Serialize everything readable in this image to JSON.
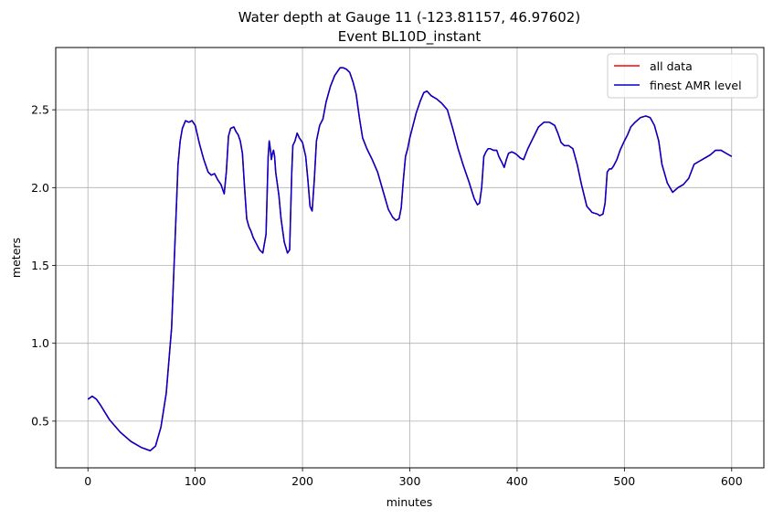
{
  "chart_data": {
    "type": "line",
    "title": "Water depth at Gauge 11 (-123.81157, 46.97602)",
    "subtitle": "Event BL10D_instant",
    "xlabel": "minutes",
    "ylabel": "meters",
    "xlim": [
      -30,
      630
    ],
    "ylim": [
      0.2,
      2.9
    ],
    "xticks": [
      0,
      100,
      200,
      300,
      400,
      500,
      600
    ],
    "yticks": [
      0.5,
      1.0,
      1.5,
      2.0,
      2.5
    ],
    "ytick_labels": [
      "0.5",
      "1.0",
      "1.5",
      "2.0",
      "2.5"
    ],
    "grid": true,
    "legend_position": "top-right",
    "series": [
      {
        "name": "all data",
        "color": "#ff0000",
        "x": [
          0,
          4,
          8,
          12,
          20,
          30,
          40,
          50,
          58,
          63,
          68,
          73,
          78,
          82,
          84,
          86,
          88,
          91,
          94,
          97,
          100,
          104,
          108,
          112,
          115,
          118,
          121,
          124,
          127,
          129,
          131,
          133,
          136,
          138,
          140,
          142,
          144,
          146,
          148,
          150,
          152,
          154,
          157,
          160,
          163,
          166,
          168,
          169,
          170,
          171,
          172,
          173,
          174,
          175,
          176,
          178,
          180,
          183,
          186,
          188,
          190,
          191,
          193,
          195,
          197,
          200,
          203,
          205,
          207,
          209,
          211,
          213,
          216,
          219,
          222,
          226,
          230,
          235,
          238,
          241,
          244,
          247,
          250,
          253,
          256,
          260,
          265,
          270,
          275,
          280,
          284,
          287,
          290,
          292,
          294,
          296,
          298,
          300,
          303,
          306,
          310,
          313,
          316,
          320,
          325,
          330,
          335,
          340,
          345,
          350,
          355,
          360,
          363,
          365,
          367,
          369,
          371,
          373,
          375,
          378,
          381,
          383,
          386,
          388,
          390,
          392,
          395,
          398,
          400,
          403,
          406,
          410,
          415,
          420,
          425,
          430,
          435,
          438,
          441,
          444,
          448,
          452,
          456,
          460,
          465,
          470,
          475,
          477,
          480,
          482,
          484,
          486,
          488,
          490,
          493,
          496,
          500,
          503,
          506,
          510,
          515,
          520,
          524,
          528,
          532,
          535,
          540,
          545,
          550,
          555,
          560,
          565,
          570,
          575,
          580,
          585,
          590,
          595,
          600
        ],
        "y": [
          0.64,
          0.66,
          0.64,
          0.6,
          0.51,
          0.43,
          0.37,
          0.33,
          0.31,
          0.34,
          0.46,
          0.68,
          1.1,
          1.8,
          2.15,
          2.3,
          2.38,
          2.43,
          2.42,
          2.43,
          2.4,
          2.28,
          2.18,
          2.1,
          2.08,
          2.09,
          2.05,
          2.02,
          1.96,
          2.1,
          2.33,
          2.38,
          2.39,
          2.36,
          2.34,
          2.3,
          2.22,
          2.0,
          1.8,
          1.75,
          1.72,
          1.68,
          1.64,
          1.6,
          1.58,
          1.7,
          2.2,
          2.3,
          2.25,
          2.18,
          2.22,
          2.24,
          2.2,
          2.1,
          2.05,
          1.95,
          1.8,
          1.65,
          1.58,
          1.6,
          2.1,
          2.27,
          2.3,
          2.35,
          2.32,
          2.29,
          2.2,
          2.05,
          1.88,
          1.85,
          2.05,
          2.3,
          2.4,
          2.44,
          2.55,
          2.65,
          2.72,
          2.77,
          2.77,
          2.76,
          2.74,
          2.68,
          2.6,
          2.45,
          2.32,
          2.25,
          2.18,
          2.1,
          1.98,
          1.86,
          1.81,
          1.79,
          1.8,
          1.87,
          2.05,
          2.2,
          2.25,
          2.32,
          2.4,
          2.48,
          2.56,
          2.61,
          2.62,
          2.59,
          2.57,
          2.54,
          2.5,
          2.38,
          2.25,
          2.14,
          2.04,
          1.93,
          1.89,
          1.9,
          2.0,
          2.2,
          2.23,
          2.25,
          2.25,
          2.24,
          2.24,
          2.2,
          2.16,
          2.13,
          2.18,
          2.22,
          2.23,
          2.22,
          2.21,
          2.19,
          2.18,
          2.25,
          2.32,
          2.39,
          2.42,
          2.42,
          2.4,
          2.35,
          2.29,
          2.27,
          2.27,
          2.25,
          2.15,
          2.02,
          1.88,
          1.84,
          1.83,
          1.82,
          1.83,
          1.9,
          2.1,
          2.12,
          2.12,
          2.14,
          2.18,
          2.24,
          2.3,
          2.34,
          2.39,
          2.42,
          2.45,
          2.46,
          2.45,
          2.4,
          2.3,
          2.15,
          2.03,
          1.97,
          2.0,
          2.02,
          2.06,
          2.15,
          2.17,
          2.19,
          2.21,
          2.24,
          2.24,
          2.22,
          2.2
        ]
      },
      {
        "name": "finest AMR level",
        "color": "#0000cc",
        "x": [
          0,
          4,
          8,
          12,
          20,
          30,
          40,
          50,
          58,
          63,
          68,
          73,
          78,
          82,
          84,
          86,
          88,
          91,
          94,
          97,
          100,
          104,
          108,
          112,
          115,
          118,
          121,
          124,
          127,
          129,
          131,
          133,
          136,
          138,
          140,
          142,
          144,
          146,
          148,
          150,
          152,
          154,
          157,
          160,
          163,
          166,
          168,
          169,
          170,
          171,
          172,
          173,
          174,
          175,
          176,
          178,
          180,
          183,
          186,
          188,
          190,
          191,
          193,
          195,
          197,
          200,
          203,
          205,
          207,
          209,
          211,
          213,
          216,
          219,
          222,
          226,
          230,
          235,
          238,
          241,
          244,
          247,
          250,
          253,
          256,
          260,
          265,
          270,
          275,
          280,
          284,
          287,
          290,
          292,
          294,
          296,
          298,
          300,
          303,
          306,
          310,
          313,
          316,
          320,
          325,
          330,
          335,
          340,
          345,
          350,
          355,
          360,
          363,
          365,
          367,
          369,
          371,
          373,
          375,
          378,
          381,
          383,
          386,
          388,
          390,
          392,
          395,
          398,
          400,
          403,
          406,
          410,
          415,
          420,
          425,
          430,
          435,
          438,
          441,
          444,
          448,
          452,
          456,
          460,
          465,
          470,
          475,
          477,
          480,
          482,
          484,
          486,
          488,
          490,
          493,
          496,
          500,
          503,
          506,
          510,
          515,
          520,
          524,
          528,
          532,
          535,
          540,
          545,
          550,
          555,
          560,
          565,
          570,
          575,
          580,
          585,
          590,
          595,
          600
        ],
        "y": [
          0.64,
          0.66,
          0.64,
          0.6,
          0.51,
          0.43,
          0.37,
          0.33,
          0.31,
          0.34,
          0.46,
          0.68,
          1.1,
          1.8,
          2.15,
          2.3,
          2.38,
          2.43,
          2.42,
          2.43,
          2.4,
          2.28,
          2.18,
          2.1,
          2.08,
          2.09,
          2.05,
          2.02,
          1.96,
          2.1,
          2.33,
          2.38,
          2.39,
          2.36,
          2.34,
          2.3,
          2.22,
          2.0,
          1.8,
          1.75,
          1.72,
          1.68,
          1.64,
          1.6,
          1.58,
          1.7,
          2.2,
          2.3,
          2.25,
          2.18,
          2.22,
          2.24,
          2.2,
          2.1,
          2.05,
          1.95,
          1.8,
          1.65,
          1.58,
          1.6,
          2.1,
          2.27,
          2.3,
          2.35,
          2.32,
          2.29,
          2.2,
          2.05,
          1.88,
          1.85,
          2.05,
          2.3,
          2.4,
          2.44,
          2.55,
          2.65,
          2.72,
          2.77,
          2.77,
          2.76,
          2.74,
          2.68,
          2.6,
          2.45,
          2.32,
          2.25,
          2.18,
          2.1,
          1.98,
          1.86,
          1.81,
          1.79,
          1.8,
          1.87,
          2.05,
          2.2,
          2.25,
          2.32,
          2.4,
          2.48,
          2.56,
          2.61,
          2.62,
          2.59,
          2.57,
          2.54,
          2.5,
          2.38,
          2.25,
          2.14,
          2.04,
          1.93,
          1.89,
          1.9,
          2.0,
          2.2,
          2.23,
          2.25,
          2.25,
          2.24,
          2.24,
          2.2,
          2.16,
          2.13,
          2.18,
          2.22,
          2.23,
          2.22,
          2.21,
          2.19,
          2.18,
          2.25,
          2.32,
          2.39,
          2.42,
          2.42,
          2.4,
          2.35,
          2.29,
          2.27,
          2.27,
          2.25,
          2.15,
          2.02,
          1.88,
          1.84,
          1.83,
          1.82,
          1.83,
          1.9,
          2.1,
          2.12,
          2.12,
          2.14,
          2.18,
          2.24,
          2.3,
          2.34,
          2.39,
          2.42,
          2.45,
          2.46,
          2.45,
          2.4,
          2.3,
          2.15,
          2.03,
          1.97,
          2.0,
          2.02,
          2.06,
          2.15,
          2.17,
          2.19,
          2.21,
          2.24,
          2.24,
          2.22,
          2.2
        ]
      }
    ]
  }
}
